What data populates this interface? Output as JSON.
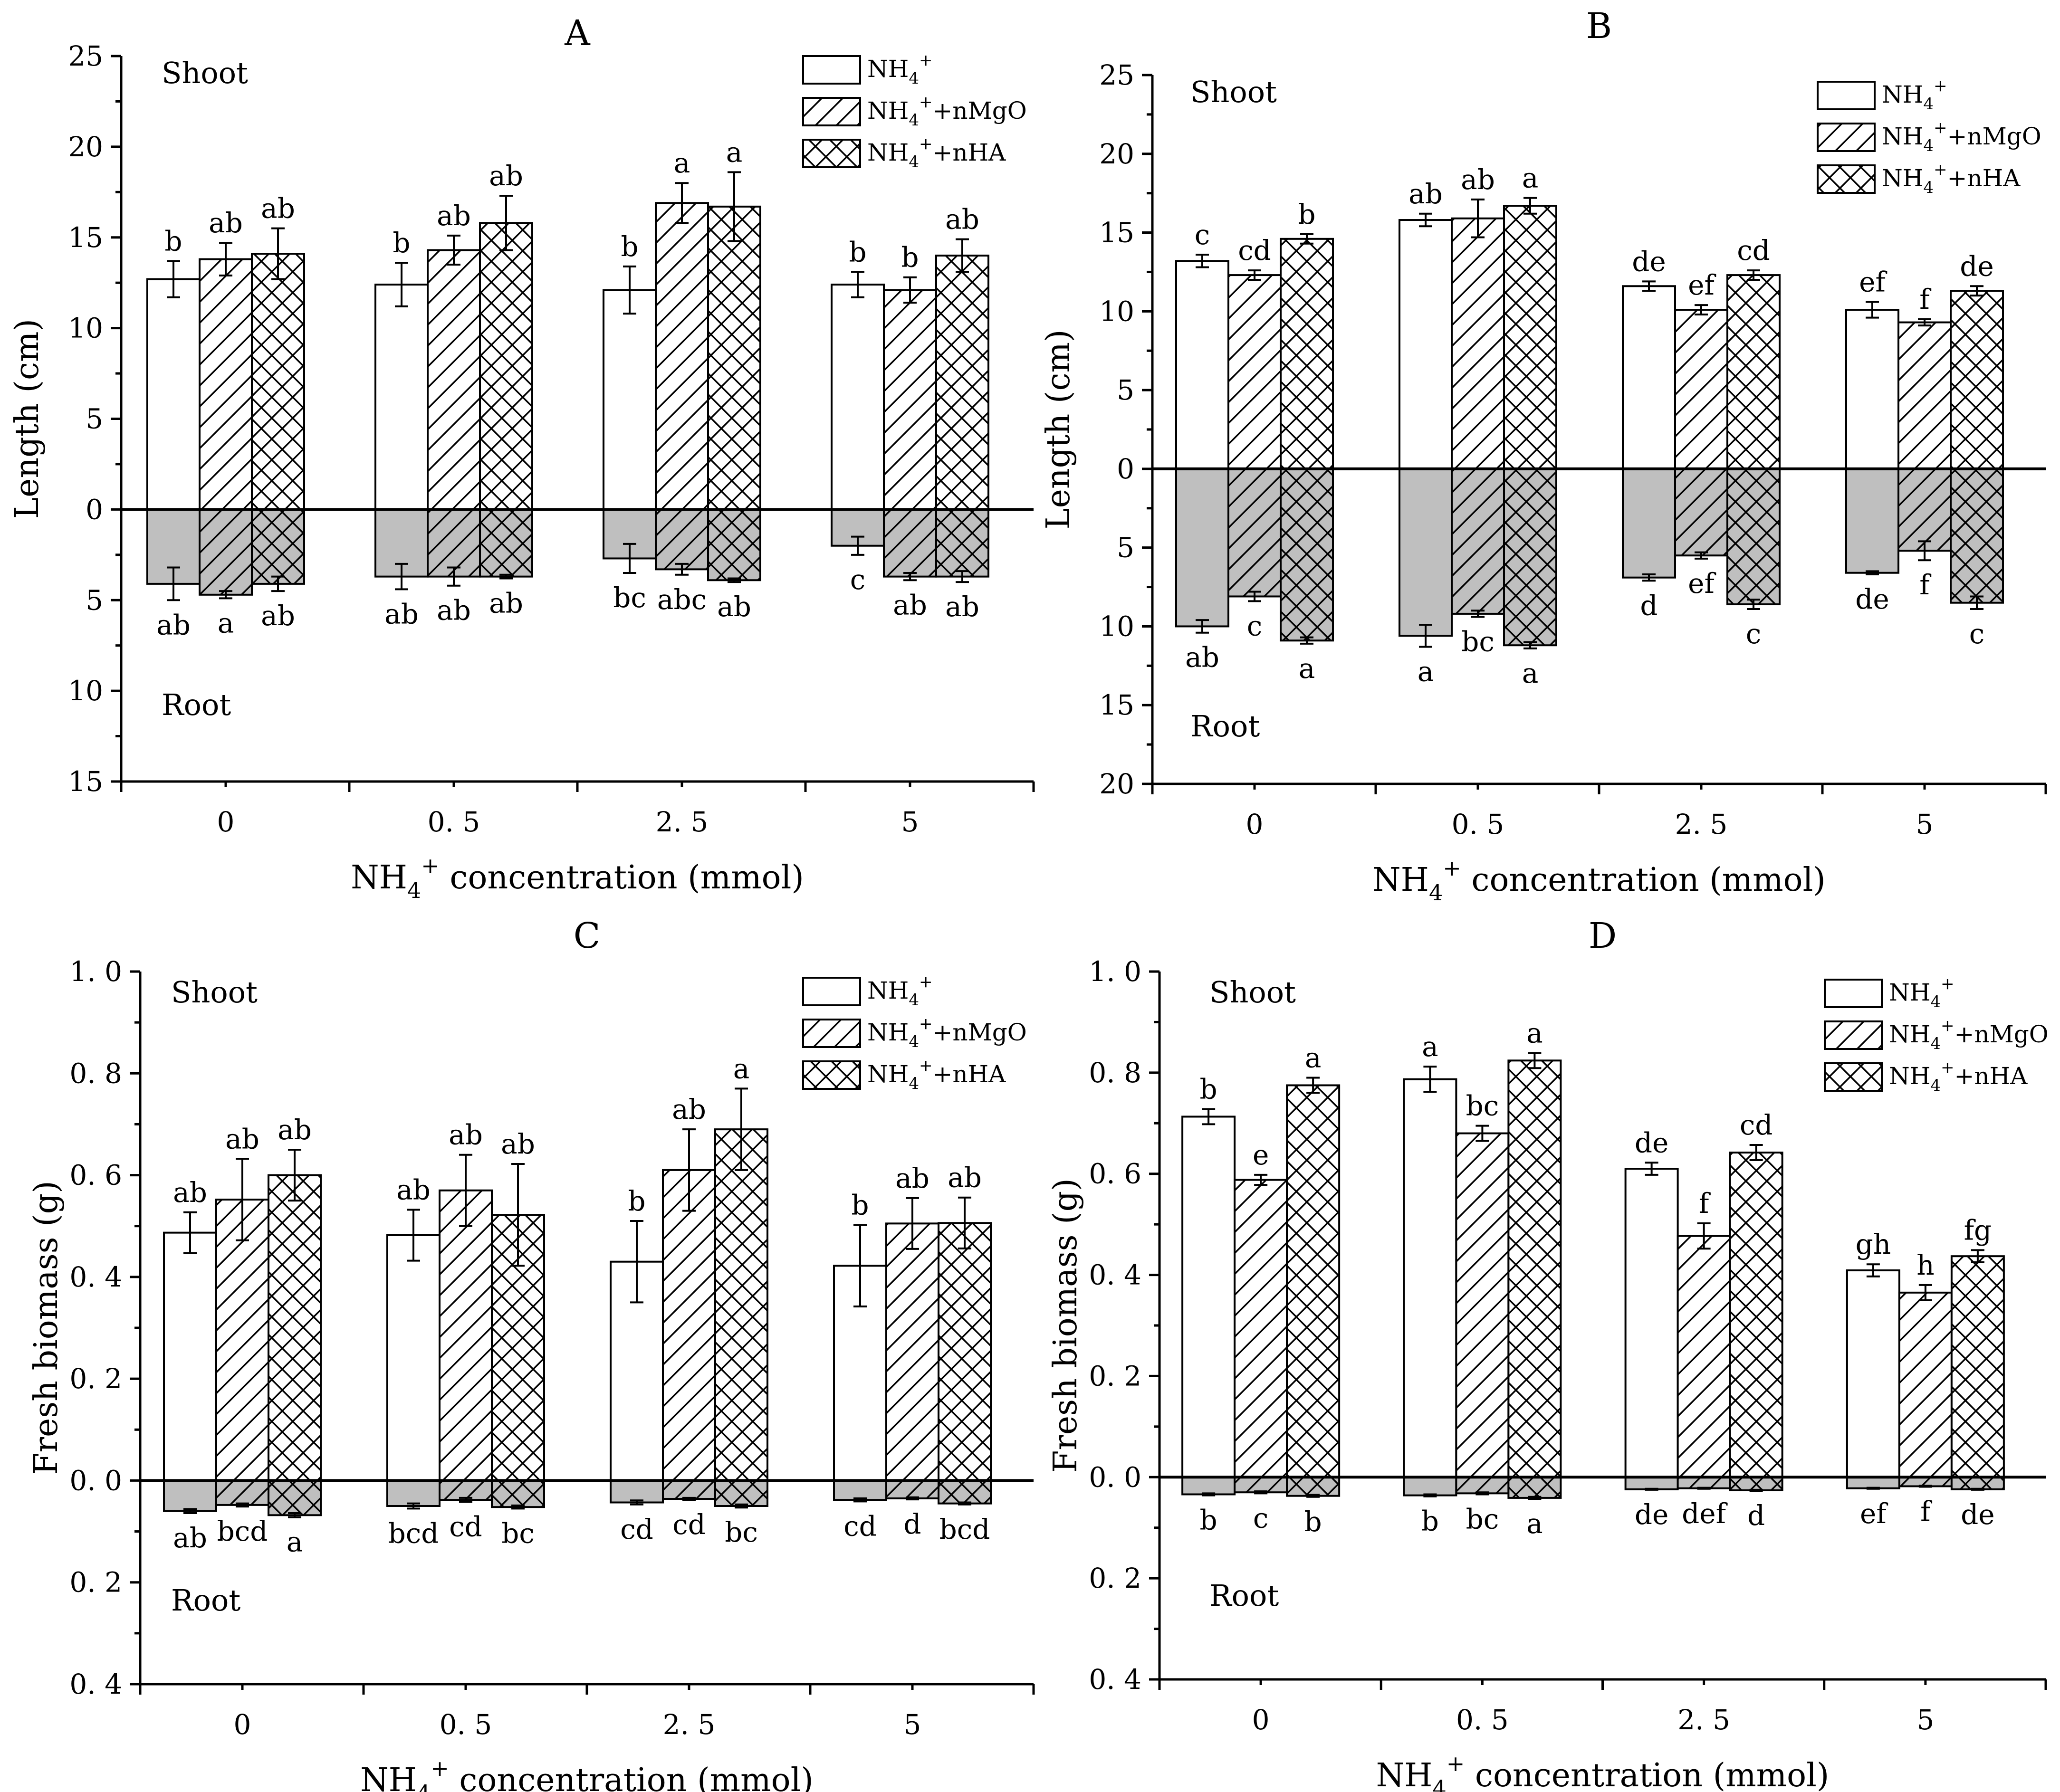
{
  "chart_data": [
    {
      "type": "bar",
      "panel": "A",
      "title": "A",
      "ylabel": "Length (cm)",
      "xlabel": "NH4+ concentration (mmol)",
      "xlabel_main": "NH",
      "xlabel_sub": "4",
      "xlabel_sup": "+",
      "xlabel_tail": " concentration (mmol)",
      "categories": [
        "0",
        "0.5",
        "2.5",
        "5"
      ],
      "category_labels": [
        "0",
        "0. 5",
        "2. 5",
        "5"
      ],
      "ylim": [
        -15,
        25
      ],
      "yticks": [
        -15,
        -10,
        -5,
        0,
        5,
        10,
        15,
        20,
        25
      ],
      "ytick_labels": [
        "15",
        "10",
        "5",
        "0",
        "5",
        "10",
        "15",
        "20",
        "25"
      ],
      "upper_label": "Shoot",
      "lower_label": "Root",
      "legend_position": "top-right",
      "series": [
        {
          "name": "NH4+",
          "pattern": "none",
          "shoot": [
            12.7,
            12.4,
            12.1,
            12.4
          ],
          "shoot_err": [
            1.0,
            1.2,
            1.3,
            0.7
          ],
          "shoot_sig": [
            "b",
            "b",
            "b",
            "b"
          ],
          "root": [
            4.1,
            3.7,
            2.7,
            2.0
          ],
          "root_err": [
            0.9,
            0.7,
            0.8,
            0.5
          ],
          "root_sig": [
            "ab",
            "ab",
            "bc",
            "c"
          ]
        },
        {
          "name": "NH4+ +nMgO",
          "pattern": "hatch",
          "shoot": [
            13.8,
            14.3,
            16.9,
            12.1
          ],
          "shoot_err": [
            0.9,
            0.8,
            1.1,
            0.7
          ],
          "shoot_sig": [
            "ab",
            "ab",
            "a",
            "b"
          ],
          "root": [
            4.7,
            3.7,
            3.3,
            3.7
          ],
          "root_err": [
            0.2,
            0.5,
            0.3,
            0.2
          ],
          "root_sig": [
            "a",
            "ab",
            "abc",
            "ab"
          ]
        },
        {
          "name": "NH4+ +nHA",
          "pattern": "cross",
          "shoot": [
            14.1,
            15.8,
            16.7,
            14.0
          ],
          "shoot_err": [
            1.4,
            1.5,
            1.9,
            0.9
          ],
          "shoot_sig": [
            "ab",
            "ab",
            "a",
            "ab"
          ],
          "root": [
            4.1,
            3.7,
            3.9,
            3.7
          ],
          "root_err": [
            0.4,
            0.1,
            0.1,
            0.3
          ],
          "root_sig": [
            "ab",
            "ab",
            "ab",
            "ab"
          ]
        }
      ]
    },
    {
      "type": "bar",
      "panel": "B",
      "title": "B",
      "ylabel": "Length (cm)",
      "xlabel": "NH4+ concentration (mmol)",
      "xlabel_main": "NH",
      "xlabel_sub": "4",
      "xlabel_sup": "+",
      "xlabel_tail": " concentration (mmol)",
      "categories": [
        "0",
        "0.5",
        "2.5",
        "5"
      ],
      "category_labels": [
        "0",
        "0. 5",
        "2. 5",
        "5"
      ],
      "ylim": [
        -20,
        25
      ],
      "yticks": [
        -20,
        -15,
        -10,
        -5,
        0,
        5,
        10,
        15,
        20,
        25
      ],
      "ytick_labels": [
        "20",
        "15",
        "10",
        "5",
        "0",
        "5",
        "10",
        "15",
        "20",
        "25"
      ],
      "upper_label": "Shoot",
      "lower_label": "Root",
      "legend_position": "top-right",
      "series": [
        {
          "name": "NH4+",
          "pattern": "none",
          "shoot": [
            13.2,
            15.8,
            11.6,
            10.1
          ],
          "shoot_err": [
            0.4,
            0.4,
            0.3,
            0.5
          ],
          "shoot_sig": [
            "c",
            "ab",
            "de",
            "ef"
          ],
          "root": [
            10.0,
            10.6,
            6.9,
            6.6
          ],
          "root_err": [
            0.4,
            0.7,
            0.2,
            0.1
          ],
          "root_sig": [
            "ab",
            "a",
            "d",
            "de"
          ]
        },
        {
          "name": "NH4+ +nMgO",
          "pattern": "hatch",
          "shoot": [
            12.3,
            15.9,
            10.1,
            9.3
          ],
          "shoot_err": [
            0.3,
            1.2,
            0.3,
            0.2
          ],
          "shoot_sig": [
            "cd",
            "ab",
            "ef",
            "f"
          ],
          "root": [
            8.1,
            9.2,
            5.5,
            5.2
          ],
          "root_err": [
            0.3,
            0.2,
            0.2,
            0.6
          ],
          "root_sig": [
            "c",
            "bc",
            "ef",
            "f"
          ]
        },
        {
          "name": "NH4+ +nHA",
          "pattern": "cross",
          "shoot": [
            14.6,
            16.7,
            12.3,
            11.3
          ],
          "shoot_err": [
            0.3,
            0.5,
            0.3,
            0.3
          ],
          "shoot_sig": [
            "b",
            "a",
            "cd",
            "de"
          ],
          "root": [
            10.9,
            11.2,
            8.6,
            8.5
          ],
          "root_err": [
            0.2,
            0.2,
            0.3,
            0.4
          ],
          "root_sig": [
            "a",
            "a",
            "c",
            "c"
          ]
        }
      ]
    },
    {
      "type": "bar",
      "panel": "C",
      "title": "C",
      "ylabel": "Fresh biomass (g)",
      "xlabel": "NH4+ concentration (mmol)",
      "xlabel_main": "NH",
      "xlabel_sub": "4",
      "xlabel_sup": "+",
      "xlabel_tail": " concentration (mmol)",
      "categories": [
        "0",
        "0.5",
        "2.5",
        "5"
      ],
      "category_labels": [
        "0",
        "0. 5",
        "2. 5",
        "5"
      ],
      "ylim": [
        -0.4,
        1.0
      ],
      "yticks": [
        -0.4,
        -0.2,
        0.0,
        0.2,
        0.4,
        0.6,
        0.8,
        1.0
      ],
      "ytick_labels": [
        "0. 4",
        "0. 2",
        "0. 0",
        "0. 2",
        "0. 4",
        "0. 6",
        "0. 8",
        "1. 0"
      ],
      "upper_label": "Shoot",
      "lower_label": "Root",
      "legend_position": "top-right",
      "series": [
        {
          "name": "NH4+",
          "pattern": "none",
          "shoot": [
            0.487,
            0.482,
            0.43,
            0.422
          ],
          "shoot_err": [
            0.04,
            0.05,
            0.08,
            0.08
          ],
          "shoot_sig": [
            "ab",
            "ab",
            "b",
            "b"
          ],
          "root": [
            0.06,
            0.05,
            0.043,
            0.038
          ],
          "root_err": [
            0.004,
            0.005,
            0.004,
            0.003
          ],
          "root_sig": [
            "ab",
            "bcd",
            "cd",
            "cd"
          ]
        },
        {
          "name": "NH4+ +nMgO",
          "pattern": "hatch",
          "shoot": [
            0.552,
            0.57,
            0.61,
            0.505
          ],
          "shoot_err": [
            0.08,
            0.07,
            0.08,
            0.05
          ],
          "shoot_sig": [
            "ab",
            "ab",
            "ab",
            "ab"
          ],
          "root": [
            0.048,
            0.038,
            0.036,
            0.035
          ],
          "root_err": [
            0.003,
            0.004,
            0.002,
            0.002
          ],
          "root_sig": [
            "bcd",
            "cd",
            "cd",
            "d"
          ]
        },
        {
          "name": "NH4+ +nHA",
          "pattern": "cross",
          "shoot": [
            0.6,
            0.522,
            0.69,
            0.506
          ],
          "shoot_err": [
            0.05,
            0.1,
            0.08,
            0.05
          ],
          "shoot_sig": [
            "ab",
            "ab",
            "a",
            "ab"
          ],
          "root": [
            0.068,
            0.052,
            0.05,
            0.045
          ],
          "root_err": [
            0.004,
            0.003,
            0.003,
            0.002
          ],
          "root_sig": [
            "a",
            "bc",
            "bc",
            "bcd"
          ]
        }
      ]
    },
    {
      "type": "bar",
      "panel": "D",
      "title": "D",
      "ylabel": "Fresh biomass (g)",
      "xlabel": "NH4+ concentration (mmol)",
      "xlabel_main": "NH",
      "xlabel_sub": "4",
      "xlabel_sup": "+",
      "xlabel_tail": " concentration (mmol)",
      "categories": [
        "0",
        "0.5",
        "2.5",
        "5"
      ],
      "category_labels": [
        "0",
        "0. 5",
        "2. 5",
        "5"
      ],
      "ylim": [
        -0.4,
        1.0
      ],
      "yticks": [
        -0.4,
        -0.2,
        0.0,
        0.2,
        0.4,
        0.6,
        0.8,
        1.0
      ],
      "ytick_labels": [
        "0. 4",
        "0. 2",
        "0. 0",
        "0. 2",
        "0. 4",
        "0. 6",
        "0. 8",
        "1. 0"
      ],
      "upper_label": "Shoot",
      "lower_label": "Root",
      "legend_position": "top-right",
      "series": [
        {
          "name": "NH4+",
          "pattern": "none",
          "shoot": [
            0.713,
            0.787,
            0.61,
            0.409
          ],
          "shoot_err": [
            0.015,
            0.025,
            0.012,
            0.012
          ],
          "shoot_sig": [
            "b",
            "a",
            "de",
            "gh"
          ],
          "root": [
            0.034,
            0.036,
            0.024,
            0.022
          ],
          "root_err": [
            0.002,
            0.002,
            0.001,
            0.001
          ],
          "root_sig": [
            "b",
            "b",
            "de",
            "ef"
          ]
        },
        {
          "name": "NH4+ +nMgO",
          "pattern": "hatch",
          "shoot": [
            0.588,
            0.68,
            0.477,
            0.365
          ],
          "shoot_err": [
            0.01,
            0.015,
            0.025,
            0.015
          ],
          "shoot_sig": [
            "e",
            "bc",
            "f",
            "h"
          ],
          "root": [
            0.03,
            0.032,
            0.022,
            0.018
          ],
          "root_err": [
            0.002,
            0.002,
            0.001,
            0.001
          ],
          "root_sig": [
            "c",
            "bc",
            "def",
            "f"
          ]
        },
        {
          "name": "NH4+ +nHA",
          "pattern": "cross",
          "shoot": [
            0.775,
            0.824,
            0.642,
            0.437
          ],
          "shoot_err": [
            0.015,
            0.015,
            0.015,
            0.012
          ],
          "shoot_sig": [
            "a",
            "a",
            "cd",
            "fg"
          ],
          "root": [
            0.037,
            0.041,
            0.026,
            0.024
          ],
          "root_err": [
            0.002,
            0.002,
            0.001,
            0.001
          ],
          "root_sig": [
            "b",
            "a",
            "d",
            "de"
          ]
        }
      ]
    }
  ],
  "legend": {
    "base": "NH",
    "sub": "4",
    "sup": "+",
    "suffixes": [
      "",
      "+nMgO",
      "+nHA"
    ]
  },
  "colors": {
    "root_fill": "#bfbfbf",
    "shoot_fill": "#ffffff",
    "line": "#000000"
  }
}
